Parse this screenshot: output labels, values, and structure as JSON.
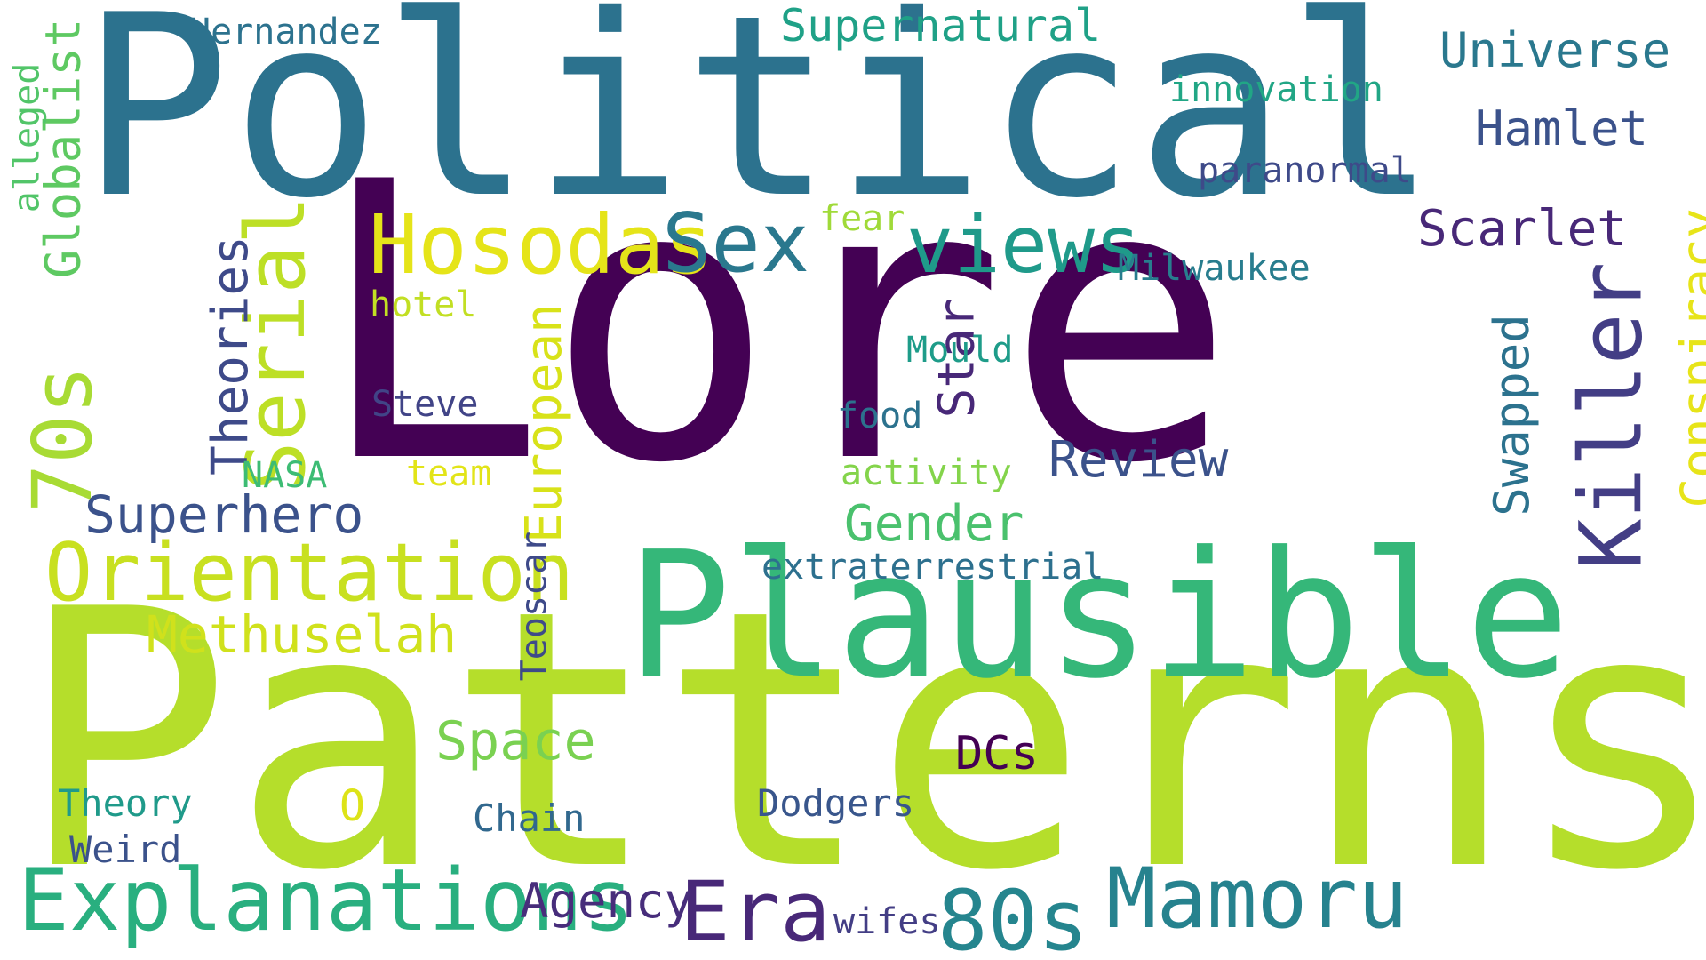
{
  "words": [
    {
      "id": "w-lore",
      "text": "Lore",
      "color": "#440154"
    },
    {
      "id": "w-patterns",
      "text": "Patterns",
      "color": "#b5de2b"
    },
    {
      "id": "w-political",
      "text": "Political",
      "color": "#2c728e"
    },
    {
      "id": "w-plausible",
      "text": "Plausible",
      "color": "#35b779"
    },
    {
      "id": "w-explanations",
      "text": "Explanations",
      "color": "#29af7f"
    },
    {
      "id": "w-orientation",
      "text": "Orientation",
      "color": "#c8e020"
    },
    {
      "id": "w-hosodas",
      "text": "Hosodas",
      "color": "#e5e419"
    },
    {
      "id": "w-serial",
      "text": "Serial",
      "color": "#bddf26"
    },
    {
      "id": "w-killer",
      "text": "Killer",
      "color": "#433e85"
    },
    {
      "id": "w-mamoru",
      "text": "Mamoru",
      "color": "#26828e"
    },
    {
      "id": "w-80s",
      "text": "80s",
      "color": "#25858e"
    },
    {
      "id": "w-era",
      "text": "Era",
      "color": "#482878"
    },
    {
      "id": "w-sex",
      "text": "Sex",
      "color": "#2a788e"
    },
    {
      "id": "w-views",
      "text": "views",
      "color": "#1f9a8a"
    },
    {
      "id": "w-70s",
      "text": "70s",
      "color": "#a8db34"
    },
    {
      "id": "w-methuselah",
      "text": "Methuselah",
      "color": "#d0e11c"
    },
    {
      "id": "w-theories",
      "text": "Theories",
      "color": "#3e4a89"
    },
    {
      "id": "w-superhero",
      "text": "Superhero",
      "color": "#3b528b"
    },
    {
      "id": "w-european",
      "text": "European",
      "color": "#d8e219"
    },
    {
      "id": "w-conspiracy",
      "text": "Conspiracy",
      "color": "#e7e419"
    },
    {
      "id": "w-space",
      "text": "Space",
      "color": "#7ad151"
    },
    {
      "id": "w-globalist",
      "text": "Globalist",
      "color": "#5ec962"
    },
    {
      "id": "w-universe",
      "text": "Universe",
      "color": "#2a788e"
    },
    {
      "id": "w-hamlet",
      "text": "Hamlet",
      "color": "#3b528b"
    },
    {
      "id": "w-scarlet",
      "text": "Scarlet",
      "color": "#482878"
    },
    {
      "id": "w-swapped",
      "text": "Swapped",
      "color": "#2c728e"
    },
    {
      "id": "w-review",
      "text": "Review",
      "color": "#3b528b"
    },
    {
      "id": "w-gender",
      "text": "Gender",
      "color": "#4ac16d"
    },
    {
      "id": "w-supernatural",
      "text": "Supernatural",
      "color": "#1fa187"
    },
    {
      "id": "w-star",
      "text": "Star",
      "color": "#482878"
    },
    {
      "id": "w-agency",
      "text": "Agency",
      "color": "#472d7b"
    },
    {
      "id": "w-dcs",
      "text": "DCs",
      "color": "#440154"
    },
    {
      "id": "w-theory",
      "text": "Theory",
      "color": "#1f9a8a"
    },
    {
      "id": "w-weird",
      "text": "Weird",
      "color": "#3b528b"
    },
    {
      "id": "w-chain",
      "text": "Chain",
      "color": "#31688e"
    },
    {
      "id": "w-o",
      "text": "O",
      "color": "#dde318"
    },
    {
      "id": "w-dodgers",
      "text": "Dodgers",
      "color": "#39568c"
    },
    {
      "id": "w-wifes",
      "text": "wifes",
      "color": "#433e85"
    },
    {
      "id": "w-teoscar",
      "text": "Teoscar",
      "color": "#3e4a89"
    },
    {
      "id": "w-extraterrestrial",
      "text": "extraterrestrial",
      "color": "#2d708e"
    },
    {
      "id": "w-hernandez",
      "text": "Hernandez",
      "color": "#2c728e"
    },
    {
      "id": "w-alleged",
      "text": "alleged",
      "color": "#52c569"
    },
    {
      "id": "w-innovation",
      "text": "innovation",
      "color": "#21a685"
    },
    {
      "id": "w-paranormal",
      "text": "paranormal",
      "color": "#3e4a89"
    },
    {
      "id": "w-milwaukee",
      "text": "Milwaukee",
      "color": "#287d8e"
    },
    {
      "id": "w-fear",
      "text": "fear",
      "color": "#a0da39"
    },
    {
      "id": "w-hotel",
      "text": "hotel",
      "color": "#c2df23"
    },
    {
      "id": "w-mould",
      "text": "Mould",
      "color": "#1e9c89"
    },
    {
      "id": "w-steve",
      "text": "Steve",
      "color": "#414487"
    },
    {
      "id": "w-food",
      "text": "food",
      "color": "#2c728e"
    },
    {
      "id": "w-nasa",
      "text": "NASA",
      "color": "#3dbc74"
    },
    {
      "id": "w-team",
      "text": "team",
      "color": "#e2e418"
    },
    {
      "id": "w-activity",
      "text": "activity",
      "color": "#84d44b"
    }
  ]
}
